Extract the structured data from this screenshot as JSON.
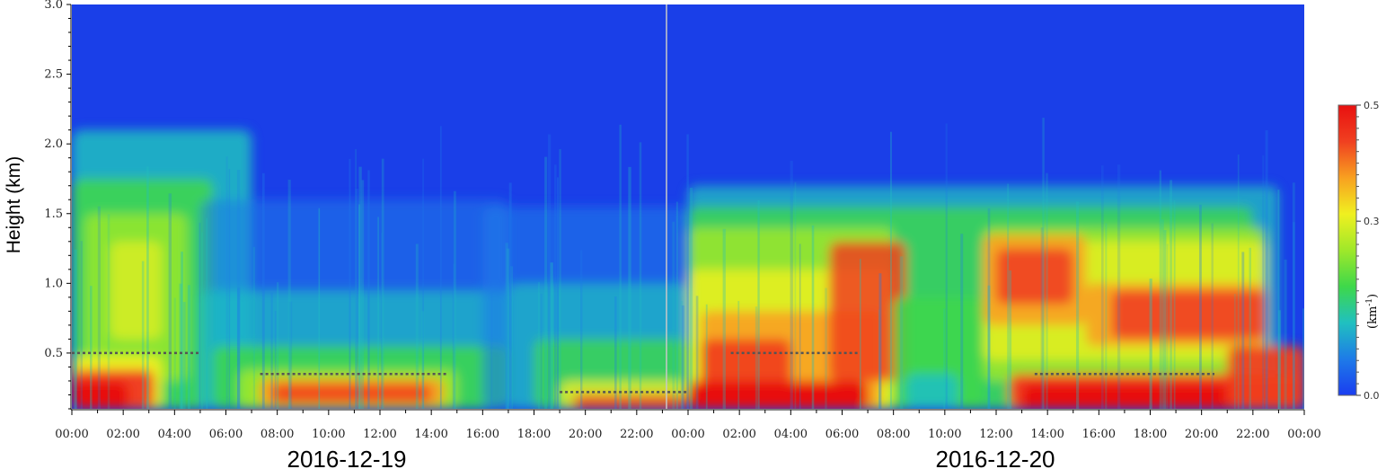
{
  "chart_data": {
    "type": "heatmap",
    "ylabel": "Height (km)",
    "ylim": [
      0.1,
      3.0
    ],
    "y_ticks": [
      "0.5",
      "1.0",
      "1.5",
      "2.0",
      "2.5",
      "3.0"
    ],
    "y_tick_values": [
      0.5,
      1.0,
      1.5,
      2.0,
      2.5,
      3.0
    ],
    "x_range_hours": [
      0,
      48
    ],
    "x_tick_labels": [
      "00:00",
      "02:00",
      "04:00",
      "06:00",
      "08:00",
      "10:00",
      "12:00",
      "14:00",
      "16:00",
      "18:00",
      "20:00",
      "22:00",
      "00:00",
      "02:00",
      "04:00",
      "06:00",
      "08:00",
      "10:00",
      "12:00",
      "14:00",
      "16:00",
      "18:00",
      "20:00",
      "22:00",
      "00:00"
    ],
    "dates": [
      "2016-12-19",
      "2016-12-20"
    ],
    "colorbar": {
      "range": [
        0.0,
        0.5
      ],
      "tick_labels": [
        "0.5",
        "0.3",
        "0.0"
      ],
      "tick_values": [
        0.5,
        0.3,
        0.0
      ],
      "unit_prefix": "(km",
      "unit_sup": "-1",
      "unit_suffix": ")",
      "colors": [
        "#1a3df0",
        "#1e7be8",
        "#20c0c0",
        "#3ed84a",
        "#9fe82a",
        "#f0f020",
        "#f8a020",
        "#f04020",
        "#e81010"
      ]
    },
    "dashed_lines": [
      {
        "day": "2016-12-19",
        "start": "00:00",
        "end": "05:00",
        "height_km": 0.5
      },
      {
        "day": "2016-12-19",
        "start": "07:20",
        "end": "14:40",
        "height_km": 0.35
      },
      {
        "day": "2016-12-19",
        "start": "19:00",
        "end": "24:00",
        "height_km": 0.22
      },
      {
        "day": "2016-12-20",
        "start": "01:40",
        "end": "06:40",
        "height_km": 0.5
      },
      {
        "day": "2016-12-20",
        "start": "13:30",
        "end": "20:30",
        "height_km": 0.35
      }
    ]
  }
}
